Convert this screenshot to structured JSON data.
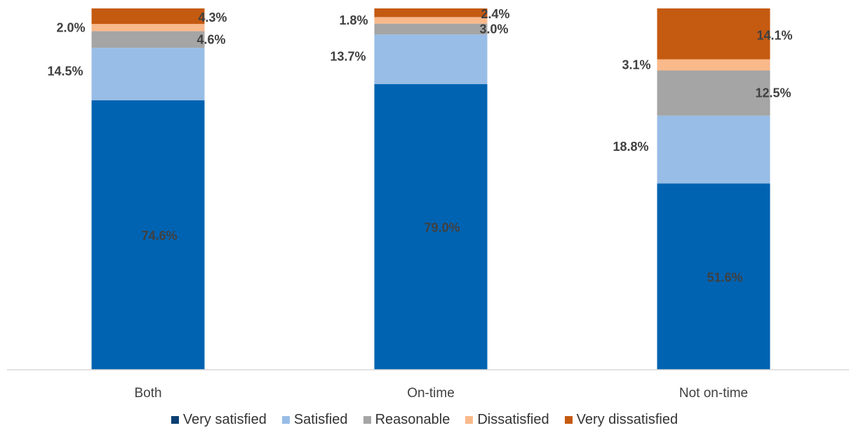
{
  "chart_data": {
    "type": "bar",
    "stacked": true,
    "percent_stacked": true,
    "categories": [
      "Both",
      "On-time",
      "Not on-time"
    ],
    "series": [
      {
        "name": "Very satisfied",
        "color": "#0063b1",
        "legend_color": "#0b3f73",
        "values": [
          74.6,
          79.0,
          51.6
        ],
        "labels": [
          "74.6%",
          "79.0%",
          "51.6%"
        ]
      },
      {
        "name": "Satisfied",
        "color": "#98bde6",
        "values": [
          14.5,
          13.7,
          18.8
        ],
        "labels": [
          "14.5%",
          "13.7%",
          "18.8%"
        ]
      },
      {
        "name": "Reasonable",
        "color": "#a5a5a5",
        "values": [
          4.6,
          3.0,
          12.5
        ],
        "labels": [
          "4.6%",
          "3.0%",
          "12.5%"
        ]
      },
      {
        "name": "Dissatisfied",
        "color": "#f9b98b",
        "values": [
          2.0,
          1.8,
          3.1
        ],
        "labels": [
          "2.0%",
          "1.8%",
          "3.1%"
        ]
      },
      {
        "name": "Very dissatisfied",
        "color": "#c55a11",
        "values": [
          4.3,
          2.4,
          14.1
        ],
        "labels": [
          "4.3%",
          "2.4%",
          "14.1%"
        ]
      }
    ],
    "ylim": [
      0,
      100
    ],
    "grid": false,
    "legend": "bottom"
  }
}
